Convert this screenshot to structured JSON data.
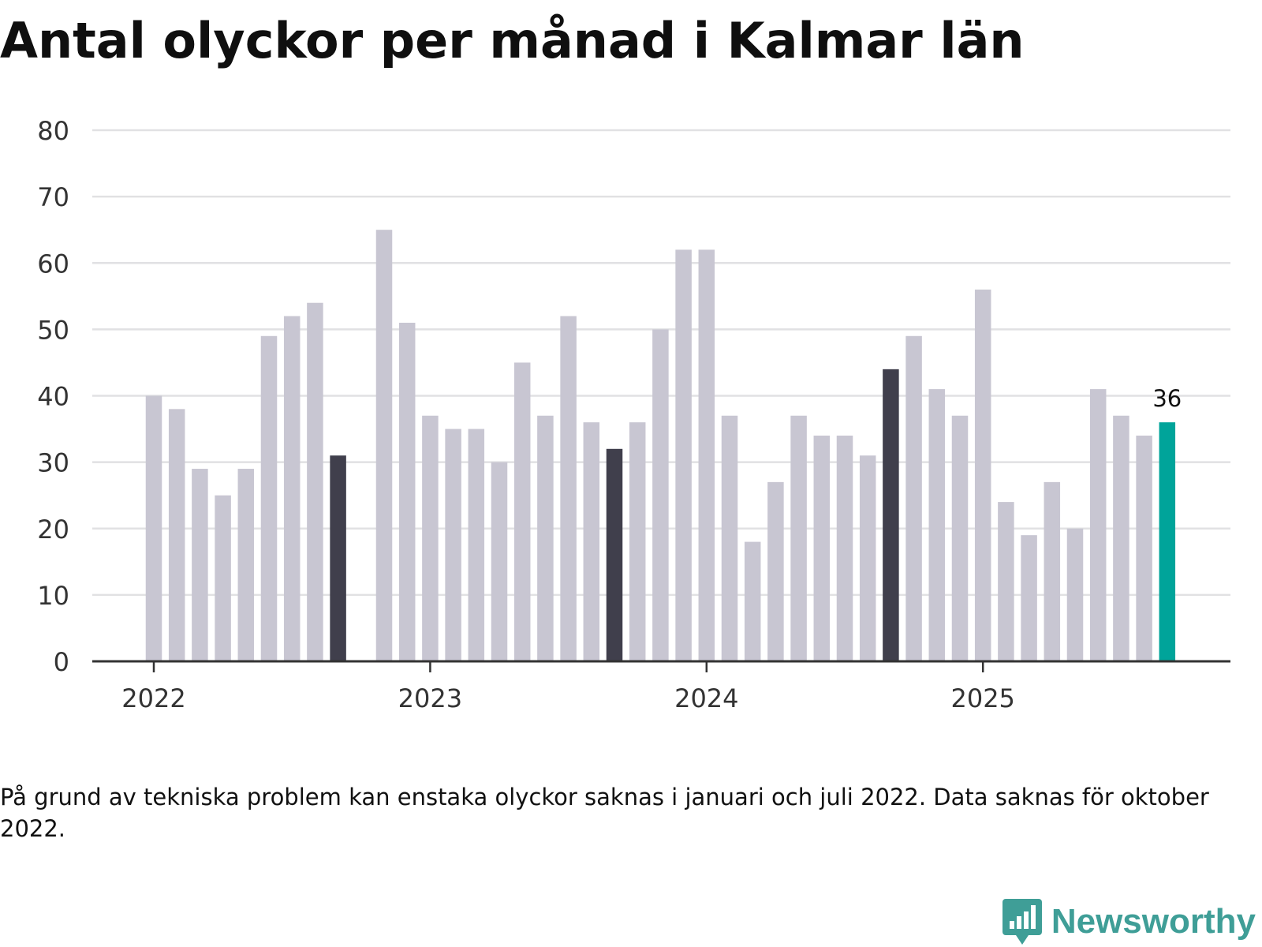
{
  "chart_data": {
    "type": "bar",
    "title": "Antal olyckor per månad i Kalmar län",
    "note": "På grund av tekniska problem kan enstaka olyckor saknas i januari och juli 2022. Data saknas för oktober 2022.",
    "x_tick_labels": [
      "2022",
      "2023",
      "2024",
      "2025"
    ],
    "y_ticks": [
      "0",
      "10",
      "20",
      "30",
      "40",
      "50",
      "60",
      "70",
      "80"
    ],
    "ylim": [
      0,
      80
    ],
    "grid": true,
    "values": [
      40,
      38,
      29,
      25,
      29,
      49,
      52,
      54,
      31,
      null,
      65,
      51,
      37,
      35,
      35,
      30,
      45,
      37,
      52,
      36,
      32,
      36,
      50,
      62,
      62,
      37,
      18,
      27,
      37,
      34,
      34,
      31,
      44,
      49,
      41,
      37,
      56,
      24,
      19,
      27,
      20,
      41,
      37,
      34,
      36
    ],
    "highlighted_index": [
      8,
      20,
      32
    ],
    "last_value_label": "36",
    "colors": {
      "bar": "#c8c6d2",
      "highlight": "#403f4c",
      "latest": "#00a49a",
      "grid": "#e1e1e3",
      "axis": "#333333"
    }
  },
  "brand": {
    "name": "Newsworthy",
    "icon": "newsworthy-logo-icon",
    "color": "#3f9e97"
  }
}
